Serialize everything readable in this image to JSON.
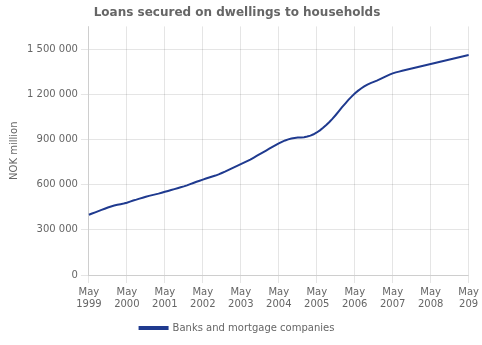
{
  "chart_data": {
    "type": "line",
    "title": "Loans secured on dwellings to households",
    "y_label": "NOK million",
    "categories": [
      "May\n1999",
      null,
      null,
      null,
      null,
      null,
      null,
      null,
      null,
      null,
      null,
      null,
      "May\n2000",
      null,
      null,
      null,
      null,
      null,
      null,
      null,
      null,
      null,
      null,
      null,
      "May\n2001",
      null,
      null,
      null,
      null,
      null,
      null,
      null,
      null,
      null,
      null,
      null,
      "May\n2002",
      null,
      null,
      null,
      null,
      null,
      null,
      null,
      null,
      null,
      null,
      null,
      "May\n2003",
      null,
      null,
      null,
      null,
      null,
      null,
      null,
      null,
      null,
      null,
      null,
      "May\n2004",
      null,
      null,
      null,
      null,
      null,
      null,
      null,
      null,
      null,
      null,
      null,
      "May\n2005",
      null,
      null,
      null,
      null,
      null,
      null,
      null,
      null,
      null,
      null,
      null,
      "May\n2006",
      null,
      null,
      null,
      null,
      null,
      null,
      null,
      null,
      null,
      null,
      null,
      "May\n2007",
      null,
      null,
      null,
      null,
      null,
      null,
      null,
      null,
      null,
      null,
      null,
      "May\n2008",
      null,
      null,
      null,
      null,
      null,
      null,
      null,
      null,
      null,
      null,
      null,
      "May\n209"
    ],
    "series": [
      {
        "name": "Banks and mortgage companies",
        "color": "#1f3a8f",
        "values": [
          400000,
          408000,
          416000,
          424000,
          432000,
          440000,
          448000,
          455000,
          461000,
          466000,
          470000,
          474000,
          480000,
          487000,
          494000,
          500000,
          507000,
          513000,
          519000,
          525000,
          530000,
          535000,
          540000,
          546000,
          552000,
          558000,
          564000,
          570000,
          576000,
          582000,
          588000,
          595000,
          603000,
          611000,
          619000,
          626000,
          633000,
          640000,
          647000,
          654000,
          660000,
          668000,
          677000,
          686000,
          696000,
          706000,
          716000,
          726000,
          736000,
          746000,
          756000,
          766000,
          778000,
          790000,
          802000,
          814000,
          826000,
          838000,
          850000,
          862000,
          874000,
          884000,
          893000,
          900000,
          906000,
          910000,
          912000,
          913000,
          915000,
          919000,
          925000,
          934000,
          946000,
          960000,
          977000,
          996000,
          1016000,
          1038000,
          1062000,
          1088000,
          1114000,
          1138000,
          1162000,
          1184000,
          1204000,
          1222000,
          1238000,
          1252000,
          1264000,
          1274000,
          1282000,
          1290000,
          1300000,
          1310000,
          1320000,
          1330000,
          1338000,
          1345000,
          1350000,
          1355000,
          1360000,
          1365000,
          1370000,
          1375000,
          1380000,
          1385000,
          1390000,
          1395000,
          1400000,
          1405000,
          1410000,
          1415000,
          1420000,
          1425000,
          1430000,
          1435000,
          1440000,
          1445000,
          1450000,
          1455000,
          1460000
        ]
      }
    ],
    "ylim": [
      0,
      1650000
    ],
    "yticks": [
      0,
      {
        "value": 300000,
        "label": "300 000"
      },
      {
        "value": 600000,
        "label": "600 000"
      },
      {
        "value": 900000,
        "label": "900 000"
      },
      {
        "value": 1200000,
        "label": "1 200 000"
      },
      {
        "value": 1500000,
        "label": "1 500 000"
      }
    ],
    "grid": true,
    "legend": "bottom"
  }
}
